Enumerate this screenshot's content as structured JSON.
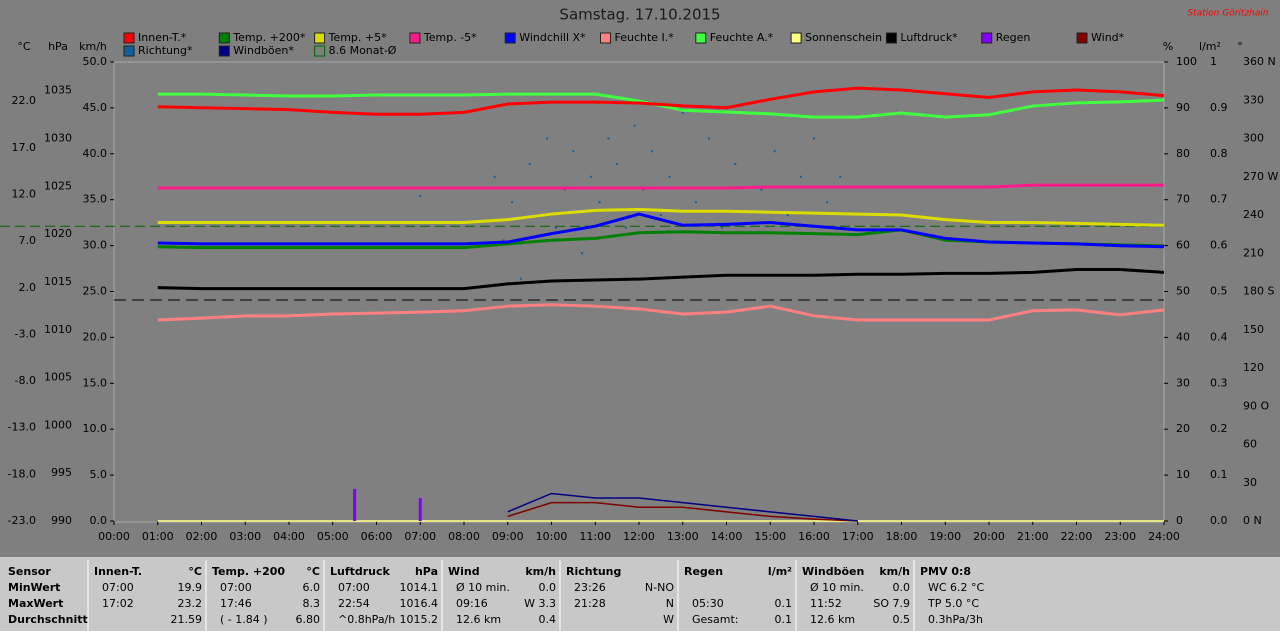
{
  "chart_data": {
    "type": "line",
    "title": "Samstag. 17.10.2015",
    "station": "Station Göritzhain",
    "monthly_mean_label": "8.6 Monat-Ø",
    "monthly_mean": 8.6,
    "xlim": [
      0,
      24
    ],
    "xticks": [
      {
        "value": 0,
        "label": "00:00"
      },
      {
        "value": 1,
        "label": "01:00"
      },
      {
        "value": 2,
        "label": "02:00"
      },
      {
        "value": 3,
        "label": "03:00"
      },
      {
        "value": 4,
        "label": "04:00"
      },
      {
        "value": 5,
        "label": "05:00"
      },
      {
        "value": 6,
        "label": "06:00"
      },
      {
        "value": 7,
        "label": "07:00"
      },
      {
        "value": 8,
        "label": "08:00"
      },
      {
        "value": 9,
        "label": "09:00"
      },
      {
        "value": 10,
        "label": "10:00"
      },
      {
        "value": 11,
        "label": "11:00"
      },
      {
        "value": 12,
        "label": "12:00"
      },
      {
        "value": 13,
        "label": "13:00"
      },
      {
        "value": 14,
        "label": "14:00"
      },
      {
        "value": 15,
        "label": "15:00"
      },
      {
        "value": 16,
        "label": "16:00"
      },
      {
        "value": 17,
        "label": "17:00"
      },
      {
        "value": 18,
        "label": "18:00"
      },
      {
        "value": 19,
        "label": "19:00"
      },
      {
        "value": 20,
        "label": "20:00"
      },
      {
        "value": 21,
        "label": "21:00"
      },
      {
        "value": 22,
        "label": "22:00"
      },
      {
        "value": 23,
        "label": "23:00"
      },
      {
        "value": 24,
        "label": "24:00"
      }
    ],
    "axes": [
      {
        "label": "°C",
        "side": "left",
        "lim": [
          -23,
          26.2
        ],
        "ticks": [
          {
            "value": 22,
            "label": "22.0"
          },
          {
            "value": 17,
            "label": "17.0"
          },
          {
            "value": 12,
            "label": "12.0"
          },
          {
            "value": 7,
            "label": "7.0"
          },
          {
            "value": 2,
            "label": "2.0"
          },
          {
            "value": -3,
            "label": "-3.0"
          },
          {
            "value": -8,
            "label": "-8.0"
          },
          {
            "value": -13,
            "label": "-13.0"
          },
          {
            "value": -18,
            "label": "-18.0"
          },
          {
            "value": -23,
            "label": "-23.0"
          }
        ]
      },
      {
        "label": "hPa",
        "side": "left",
        "lim": [
          990,
          1038
        ],
        "ticks": [
          1035,
          1030,
          1025,
          1020,
          1015,
          1010,
          1005,
          1000,
          995,
          990
        ]
      },
      {
        "label": "km/h",
        "side": "left",
        "lim": [
          0,
          50
        ],
        "ticks": [
          {
            "value": 50,
            "label": "50.0"
          },
          {
            "value": 45,
            "label": "45.0"
          },
          {
            "value": 40,
            "label": "40.0"
          },
          {
            "value": 35,
            "label": "35.0"
          },
          {
            "value": 30,
            "label": "30.0"
          },
          {
            "value": 25,
            "label": "25.0"
          },
          {
            "value": 20,
            "label": "20.0"
          },
          {
            "value": 15,
            "label": "15.0"
          },
          {
            "value": 10,
            "label": "10.0"
          },
          {
            "value": 5,
            "label": "5.0"
          },
          {
            "value": 0,
            "label": "0.0"
          }
        ]
      },
      {
        "label": "%",
        "side": "right",
        "lim": [
          0,
          100
        ],
        "ticks": [
          100,
          90,
          80,
          70,
          60,
          50,
          40,
          30,
          20,
          10,
          0
        ]
      },
      {
        "label": "l/m²",
        "side": "right",
        "lim": [
          0,
          1
        ],
        "ticks": [
          1,
          0.9,
          0.8,
          0.7,
          0.6,
          0.5,
          0.4,
          0.3,
          0.2,
          0.1,
          {
            "value": 0,
            "label": "0.0"
          }
        ]
      },
      {
        "label": "°",
        "side": "right",
        "lim": [
          0,
          360
        ],
        "ticks": [
          {
            "value": 360,
            "label": "360 N"
          },
          330,
          300,
          {
            "value": 270,
            "label": "270 W"
          },
          240,
          210,
          {
            "value": 180,
            "label": "180 S"
          },
          150,
          120,
          {
            "value": 90,
            "label": "90  O"
          },
          60,
          30,
          {
            "value": 0,
            "label": "0  N"
          }
        ]
      }
    ],
    "x": [
      1,
      2,
      3,
      4,
      5,
      6,
      7,
      8,
      9,
      10,
      11,
      12,
      13,
      14,
      15,
      16,
      17,
      18,
      19,
      20,
      21,
      22,
      23,
      24
    ],
    "series": [
      {
        "name": "Innen-T.*",
        "color": "#ff0000",
        "axis": "°C",
        "values": [
          21.4,
          21.3,
          21.2,
          21.1,
          20.8,
          20.6,
          20.6,
          20.8,
          21.7,
          21.9,
          21.9,
          21.8,
          21.5,
          21.3,
          22.2,
          23.0,
          23.4,
          23.2,
          22.8,
          22.4,
          23.0,
          23.2,
          23.0,
          22.6
        ]
      },
      {
        "name": "Temp. +200*",
        "color": "#008000",
        "axis": "°C",
        "values": [
          6.4,
          6.3,
          6.3,
          6.3,
          6.3,
          6.3,
          6.3,
          6.3,
          6.7,
          7.1,
          7.3,
          7.9,
          8.0,
          7.9,
          7.9,
          7.8,
          7.7,
          8.2,
          7.1,
          6.9,
          6.8,
          6.7,
          6.6,
          6.5
        ]
      },
      {
        "name": "Temp. +5*",
        "color": "#dcdc00",
        "axis": "°C",
        "values": [
          9.0,
          9.0,
          9.0,
          9.0,
          9.0,
          9.0,
          9.0,
          9.0,
          9.3,
          9.9,
          10.3,
          10.4,
          10.2,
          10.2,
          10.1,
          10.0,
          9.9,
          9.8,
          9.3,
          9.0,
          9.0,
          8.9,
          8.8,
          8.7
        ]
      },
      {
        "name": "Temp. -5*",
        "color": "#ff1a8c",
        "axis": "°C",
        "values": [
          12.7,
          12.7,
          12.7,
          12.7,
          12.7,
          12.7,
          12.7,
          12.7,
          12.7,
          12.7,
          12.7,
          12.7,
          12.7,
          12.7,
          12.8,
          12.8,
          12.8,
          12.8,
          12.8,
          12.8,
          13.0,
          13.0,
          13.0,
          13.0
        ]
      },
      {
        "name": "Windchill X*",
        "color": "#0000ff",
        "axis": "°C",
        "values": [
          6.8,
          6.7,
          6.7,
          6.7,
          6.7,
          6.7,
          6.7,
          6.7,
          6.9,
          7.8,
          8.6,
          9.9,
          8.7,
          8.8,
          9.0,
          8.6,
          8.2,
          8.2,
          7.3,
          6.9,
          6.8,
          6.7,
          6.5,
          6.4
        ]
      },
      {
        "name": "Feuchte I.*",
        "color": "#ff8080",
        "axis": "%",
        "values": [
          43.8,
          44.2,
          44.7,
          44.7,
          45.1,
          45.3,
          45.5,
          45.8,
          46.8,
          47.1,
          46.8,
          46.2,
          45.1,
          45.5,
          46.8,
          44.7,
          43.8,
          43.8,
          43.8,
          43.8,
          45.8,
          46.0,
          44.9,
          46.0
        ]
      },
      {
        "name": "Feuchte A.*",
        "color": "#40ff40",
        "axis": "%",
        "values": [
          93.0,
          93.0,
          92.8,
          92.6,
          92.6,
          92.8,
          92.8,
          92.8,
          93.0,
          93.0,
          93.0,
          91.5,
          89.5,
          89.1,
          88.7,
          88.0,
          88.0,
          88.9,
          88.0,
          88.5,
          90.4,
          91.1,
          91.3,
          91.7
        ]
      },
      {
        "name": "Sonnenschein",
        "color": "#ffff80",
        "axis": "%",
        "values": [
          0,
          0,
          0,
          0,
          0,
          0,
          0,
          0,
          0,
          0,
          0,
          0,
          0,
          0,
          0,
          0,
          0,
          0,
          0,
          0,
          0,
          0,
          0,
          0
        ]
      },
      {
        "name": "Luftdruck*",
        "color": "#000000",
        "axis": "hPa",
        "values": [
          1014.4,
          1014.3,
          1014.3,
          1014.3,
          1014.3,
          1014.3,
          1014.3,
          1014.3,
          1014.8,
          1015.1,
          1015.2,
          1015.3,
          1015.5,
          1015.7,
          1015.7,
          1015.7,
          1015.8,
          1015.8,
          1015.9,
          1015.9,
          1016.0,
          1016.3,
          1016.3,
          1016.0
        ]
      },
      {
        "name": "Regen",
        "color": "#8000ff",
        "axis": "l/m²",
        "type": "bar",
        "x": [
          5.5,
          7.0
        ],
        "values": [
          0.07,
          0.05
        ]
      },
      {
        "name": "Wind*",
        "color": "#800000",
        "axis": "km/h",
        "values": [
          null,
          null,
          null,
          null,
          null,
          null,
          null,
          null,
          0.5,
          2.0,
          2.0,
          1.5,
          1.5,
          1.0,
          0.5,
          0.2,
          0,
          null,
          null,
          null,
          null,
          null,
          null,
          null
        ]
      },
      {
        "name": "Richtung*",
        "color": "#1060a0",
        "axis": "°",
        "type": "scatter",
        "x": [
          7.0,
          8.7,
          8.9,
          9.1,
          9.3,
          9.5,
          9.7,
          9.9,
          10.1,
          10.3,
          10.5,
          10.7,
          10.9,
          11.1,
          11.3,
          11.5,
          11.7,
          11.9,
          12.1,
          12.3,
          12.5,
          12.7,
          13.0,
          13.3,
          13.6,
          13.9,
          14.2,
          14.5,
          14.8,
          15.1,
          15.4,
          15.7,
          16.0,
          16.3,
          16.6
        ],
        "values": [
          255,
          270,
          220,
          250,
          190,
          280,
          240,
          300,
          230,
          260,
          290,
          210,
          270,
          250,
          300,
          280,
          230,
          310,
          260,
          290,
          240,
          270,
          320,
          250,
          300,
          230,
          280,
          320,
          260,
          290,
          240,
          270,
          300,
          250,
          270
        ]
      },
      {
        "name": "Windböen*",
        "color": "#000080",
        "axis": "km/h",
        "values": [
          null,
          null,
          null,
          null,
          null,
          null,
          null,
          null,
          1.0,
          3.0,
          2.5,
          2.5,
          2.0,
          1.5,
          1.0,
          0.5,
          0.0,
          null,
          null,
          null,
          null,
          null,
          null,
          null
        ]
      }
    ]
  },
  "stats_table": {
    "row_labels": [
      "Sensor",
      "MinWert",
      "MaxWert",
      "Durchschnitt"
    ],
    "columns": [
      {
        "header": "Innen-T.",
        "unit": "°C",
        "rows": [
          [
            "07:00",
            "19.9"
          ],
          [
            "17:02",
            "23.2"
          ],
          [
            null,
            "21.59"
          ]
        ]
      },
      {
        "header": "Temp. +200",
        "unit": "°C",
        "rows": [
          [
            "07:00",
            "6.0"
          ],
          [
            "17:46",
            "8.3"
          ],
          [
            "( - 1.84 )",
            "6.80"
          ]
        ]
      },
      {
        "header": "Luftdruck",
        "unit": "hPa",
        "rows": [
          [
            "07:00",
            "1014.1"
          ],
          [
            "22:54",
            "1016.4"
          ],
          [
            "^0.8hPa/h",
            "1015.2"
          ]
        ]
      },
      {
        "header": "Wind",
        "unit": "km/h",
        "rows": [
          [
            "Ø 10 min.",
            "0.0"
          ],
          [
            "09:16",
            "W 3.3"
          ],
          [
            "12.6 km",
            "0.4"
          ]
        ]
      },
      {
        "header": "Richtung",
        "unit": null,
        "rows": [
          [
            "23:26",
            "N-NO"
          ],
          [
            "21:28",
            "N"
          ],
          [
            null,
            "W"
          ]
        ]
      },
      {
        "header": "Regen",
        "unit": "l/m²",
        "rows": [
          [
            null,
            null
          ],
          [
            "05:30",
            "0.1"
          ],
          [
            "Gesamt:",
            "0.1"
          ]
        ]
      },
      {
        "header": "Windböen",
        "unit": "km/h",
        "rows": [
          [
            "Ø 10 min.",
            "0.0"
          ],
          [
            "11:52",
            "SO 7.9"
          ],
          [
            "12.6 km",
            "0.5"
          ]
        ]
      },
      {
        "header": "PMV 0:8",
        "unit": null,
        "rows": [
          [
            "WC 6.2 °C",
            null
          ],
          [
            "TP 5.0 °C",
            null
          ],
          [
            "0.3hPa/3h",
            null
          ]
        ]
      }
    ]
  }
}
